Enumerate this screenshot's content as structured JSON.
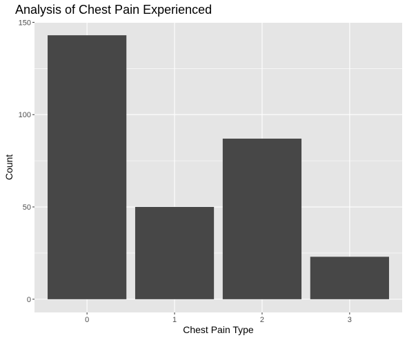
{
  "chart_data": {
    "type": "bar",
    "title": "Analysis of Chest Pain Experienced",
    "xlabel": "Chest Pain Type",
    "ylabel": "Count",
    "categories": [
      "0",
      "1",
      "2",
      "3"
    ],
    "values": [
      143,
      50,
      87,
      23
    ],
    "ylim": [
      -7.15,
      150.15
    ],
    "yticks": [
      0,
      50,
      100,
      150
    ],
    "grid": true,
    "legend": "none",
    "colors": {
      "panel": "#e5e5e5",
      "grid_major": "#ffffff",
      "bar": "#474747",
      "tick_text": "#4d4d4d"
    }
  }
}
